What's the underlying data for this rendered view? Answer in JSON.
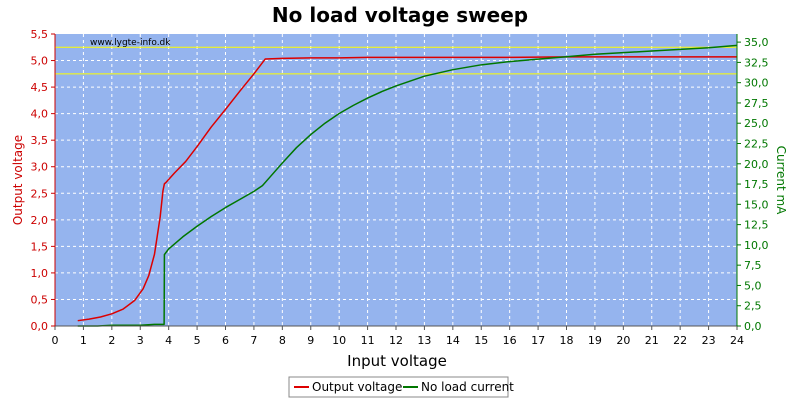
{
  "colors": {
    "plot_background": "#95b4ee",
    "grid": "#ffffff",
    "left_axis": "#cc0000",
    "right_axis": "#007700",
    "reference_line": "#ffff00"
  },
  "chart_data": {
    "type": "line",
    "title": "No load voltage sweep",
    "watermark": "www.lygte-info.dk",
    "xlabel": "Input voltage",
    "ylabel_left": "Output voltage",
    "ylabel_right": "Current mA",
    "xlim": [
      0,
      24
    ],
    "ylim_left": [
      0,
      5.5
    ],
    "ylim_right": [
      0,
      36
    ],
    "x_ticks": [
      "0",
      "1",
      "2",
      "3",
      "4",
      "5",
      "6",
      "7",
      "8",
      "9",
      "10",
      "11",
      "12",
      "13",
      "14",
      "15",
      "16",
      "17",
      "18",
      "19",
      "20",
      "21",
      "22",
      "23",
      "24"
    ],
    "y_left_ticks": [
      "0,0",
      "0,5",
      "1,0",
      "1,5",
      "2,0",
      "2,5",
      "3,0",
      "3,5",
      "4,0",
      "4,5",
      "5,0",
      "5,5"
    ],
    "y_right_ticks": [
      "0,0",
      "2,5",
      "5,0",
      "7,5",
      "10,0",
      "12,5",
      "15,0",
      "17,5",
      "20,0",
      "22,5",
      "25,0",
      "27,5",
      "30,0",
      "32,5",
      "35,0"
    ],
    "grid": true,
    "legend_position": "bottom-center",
    "reference_lines_left_axis": [
      5.25,
      4.75
    ],
    "series": [
      {
        "name": "Output voltage",
        "axis": "left",
        "color": "#dd0000",
        "x": [
          0.8,
          1.2,
          1.6,
          2.0,
          2.4,
          2.8,
          3.1,
          3.3,
          3.5,
          3.6,
          3.7,
          3.75,
          3.8,
          3.85,
          3.9,
          4.2,
          4.6,
          5.0,
          5.5,
          6.0,
          6.5,
          7.0,
          7.4,
          8.0,
          9.0,
          10.0,
          11.0,
          12.0,
          14.0,
          16.0,
          18.0,
          20.0,
          22.0,
          24.0
        ],
        "values": [
          0.1,
          0.13,
          0.17,
          0.23,
          0.32,
          0.48,
          0.7,
          0.95,
          1.35,
          1.7,
          2.05,
          2.3,
          2.55,
          2.68,
          2.7,
          2.88,
          3.1,
          3.38,
          3.75,
          4.08,
          4.42,
          4.75,
          5.03,
          5.04,
          5.05,
          5.05,
          5.06,
          5.06,
          5.06,
          5.06,
          5.07,
          5.07,
          5.07,
          5.07
        ]
      },
      {
        "name": "No load current",
        "axis": "right",
        "color": "#007700",
        "x": [
          0.8,
          1.5,
          2.0,
          3.0,
          3.5,
          3.84,
          3.85,
          4.0,
          4.5,
          5.0,
          5.5,
          6.0,
          6.5,
          7.0,
          7.3,
          7.6,
          8.0,
          8.5,
          9.0,
          9.5,
          10.0,
          10.5,
          11.0,
          11.5,
          12.0,
          12.5,
          13.0,
          14.0,
          15.0,
          16.0,
          17.0,
          18.0,
          19.0,
          20.0,
          21.0,
          22.0,
          23.0,
          24.0
        ],
        "values": [
          0.0,
          0.0,
          0.1,
          0.1,
          0.2,
          0.2,
          8.8,
          9.5,
          11.0,
          12.3,
          13.5,
          14.6,
          15.6,
          16.6,
          17.3,
          18.5,
          20.1,
          22.0,
          23.6,
          25.0,
          26.2,
          27.2,
          28.1,
          28.9,
          29.6,
          30.2,
          30.8,
          31.6,
          32.2,
          32.6,
          32.9,
          33.2,
          33.5,
          33.7,
          33.9,
          34.1,
          34.3,
          34.6
        ]
      }
    ]
  }
}
